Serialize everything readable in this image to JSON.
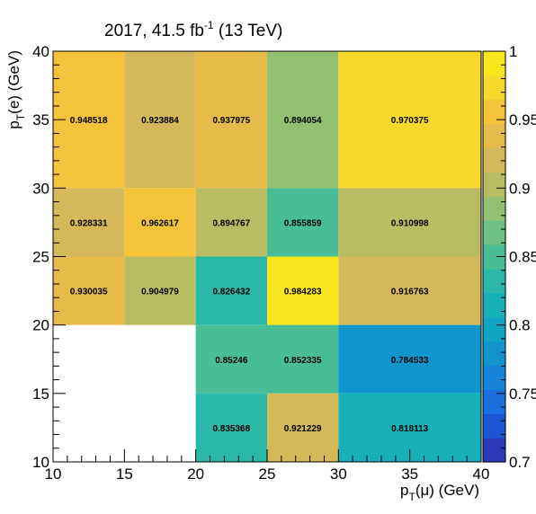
{
  "chart_data": {
    "type": "heatmap",
    "title": "2017, 41.5 fb",
    "title_sup": "-1",
    "title_suffix": " (13 TeV)",
    "xlabel": {
      "base": "p",
      "sub": "T",
      "rest": "(μ) (GeV)"
    },
    "ylabel": {
      "base": "p",
      "sub": "T",
      "rest": "(e) (GeV)"
    },
    "x_edges": [
      10,
      15,
      20,
      25,
      30,
      40
    ],
    "y_edges": [
      10,
      15,
      20,
      25,
      30,
      40
    ],
    "xlim": [
      10,
      40
    ],
    "ylim": [
      10,
      40
    ],
    "x_ticks": [
      10,
      15,
      20,
      25,
      30,
      35,
      40
    ],
    "y_ticks": [
      10,
      15,
      20,
      25,
      30,
      35,
      40
    ],
    "x_tick_labels": [
      "10",
      "15",
      "20",
      "25",
      "30",
      "35",
      "40"
    ],
    "y_tick_labels": [
      "10",
      "15",
      "20",
      "25",
      "30",
      "35",
      "40"
    ],
    "zlim": [
      0.7,
      1.0
    ],
    "z_ticks": [
      0.7,
      0.75,
      0.8,
      0.85,
      0.9,
      0.95,
      1.0
    ],
    "z_tick_labels": [
      "0.7",
      "0.75",
      "0.8",
      "0.85",
      "0.9",
      "0.95",
      "1"
    ],
    "cells": [
      {
        "x": [
          10,
          15
        ],
        "y": [
          30,
          40
        ],
        "value": 0.948518,
        "label": "0.948518"
      },
      {
        "x": [
          15,
          20
        ],
        "y": [
          30,
          40
        ],
        "value": 0.923884,
        "label": "0.923884"
      },
      {
        "x": [
          20,
          25
        ],
        "y": [
          30,
          40
        ],
        "value": 0.937975,
        "label": "0.937975"
      },
      {
        "x": [
          25,
          30
        ],
        "y": [
          30,
          40
        ],
        "value": 0.894054,
        "label": "0.894054"
      },
      {
        "x": [
          30,
          40
        ],
        "y": [
          30,
          40
        ],
        "value": 0.970375,
        "label": "0.970375"
      },
      {
        "x": [
          10,
          15
        ],
        "y": [
          25,
          30
        ],
        "value": 0.928331,
        "label": "0.928331"
      },
      {
        "x": [
          15,
          20
        ],
        "y": [
          25,
          30
        ],
        "value": 0.962617,
        "label": "0.962617"
      },
      {
        "x": [
          20,
          25
        ],
        "y": [
          25,
          30
        ],
        "value": 0.894767,
        "label": "0.894767"
      },
      {
        "x": [
          25,
          30
        ],
        "y": [
          25,
          30
        ],
        "value": 0.855859,
        "label": "0.855859"
      },
      {
        "x": [
          30,
          40
        ],
        "y": [
          25,
          30
        ],
        "value": 0.910998,
        "label": "0.910998"
      },
      {
        "x": [
          10,
          15
        ],
        "y": [
          20,
          25
        ],
        "value": 0.930035,
        "label": "0.930035"
      },
      {
        "x": [
          15,
          20
        ],
        "y": [
          20,
          25
        ],
        "value": 0.904979,
        "label": "0.904979"
      },
      {
        "x": [
          20,
          25
        ],
        "y": [
          20,
          25
        ],
        "value": 0.826432,
        "label": "0.826432"
      },
      {
        "x": [
          25,
          30
        ],
        "y": [
          20,
          25
        ],
        "value": 0.984283,
        "label": "0.984283"
      },
      {
        "x": [
          30,
          40
        ],
        "y": [
          20,
          25
        ],
        "value": 0.916763,
        "label": "0.916763"
      },
      {
        "x": [
          20,
          25
        ],
        "y": [
          15,
          20
        ],
        "value": 0.85246,
        "label": "0.85246"
      },
      {
        "x": [
          25,
          30
        ],
        "y": [
          15,
          20
        ],
        "value": 0.852335,
        "label": "0.852335"
      },
      {
        "x": [
          30,
          40
        ],
        "y": [
          15,
          20
        ],
        "value": 0.784533,
        "label": "0.784533"
      },
      {
        "x": [
          20,
          25
        ],
        "y": [
          10,
          15
        ],
        "value": 0.835368,
        "label": "0.835368"
      },
      {
        "x": [
          25,
          30
        ],
        "y": [
          10,
          15
        ],
        "value": 0.921229,
        "label": "0.921229"
      },
      {
        "x": [
          30,
          40
        ],
        "y": [
          10,
          15
        ],
        "value": 0.818113,
        "label": "0.818113"
      }
    ],
    "palette": [
      "#2a3ab8",
      "#1a55d6",
      "#1a6ee0",
      "#1485d8",
      "#1096cc",
      "#0ea6c4",
      "#15b0b8",
      "#2cb8a8",
      "#48bd96",
      "#6cc083",
      "#94c072",
      "#b9bc63",
      "#d3b95a",
      "#e6bb4a",
      "#f4c339",
      "#f8d82a",
      "#f9e61e"
    ],
    "colorbar": true,
    "legend": "none",
    "grid": false
  }
}
